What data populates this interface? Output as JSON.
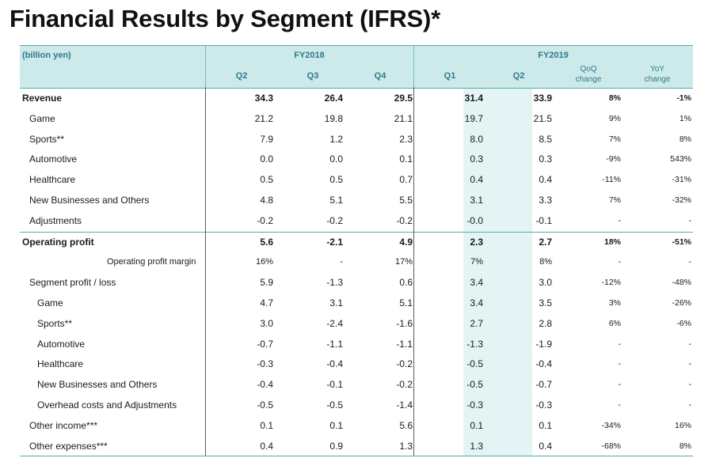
{
  "title": "Financial Results by Segment (IFRS)*",
  "header": {
    "unit": "(billion yen)",
    "fy2018": "FY2018",
    "fy2019": "FY2019",
    "quarters": [
      "Q2",
      "Q3",
      "Q4",
      "Q1",
      "Q2"
    ],
    "qoq": [
      "QoQ",
      "change"
    ],
    "yoy": [
      "YoY",
      "change"
    ]
  },
  "rows": [
    {
      "label": "Revenue",
      "indent": 0,
      "bold": true,
      "topline": false,
      "values": [
        "34.3",
        "26.4",
        "29.5",
        "31.4",
        "33.9"
      ],
      "qoq": "8%",
      "yoy": "-1%"
    },
    {
      "label": "Game",
      "indent": 1,
      "bold": false,
      "topline": false,
      "values": [
        "21.2",
        "19.8",
        "21.1",
        "19.7",
        "21.5"
      ],
      "qoq": "9%",
      "yoy": "1%"
    },
    {
      "label": "Sports**",
      "indent": 1,
      "bold": false,
      "topline": false,
      "values": [
        "7.9",
        "1.2",
        "2.3",
        "8.0",
        "8.5"
      ],
      "qoq": "7%",
      "yoy": "8%"
    },
    {
      "label": "Automotive",
      "indent": 1,
      "bold": false,
      "topline": false,
      "values": [
        "0.0",
        "0.0",
        "0.1",
        "0.3",
        "0.3"
      ],
      "qoq": "-9%",
      "yoy": "543%"
    },
    {
      "label": "Healthcare",
      "indent": 1,
      "bold": false,
      "topline": false,
      "values": [
        "0.5",
        "0.5",
        "0.7",
        "0.4",
        "0.4"
      ],
      "qoq": "-11%",
      "yoy": "-31%"
    },
    {
      "label": "New Businesses and Others",
      "indent": 1,
      "bold": false,
      "topline": false,
      "values": [
        "4.8",
        "5.1",
        "5.5",
        "3.1",
        "3.3"
      ],
      "qoq": "7%",
      "yoy": "-32%"
    },
    {
      "label": "Adjustments",
      "indent": 1,
      "bold": false,
      "topline": false,
      "values": [
        "-0.2",
        "-0.2",
        "-0.2",
        "-0.0",
        "-0.1"
      ],
      "qoq": "-",
      "yoy": "-"
    },
    {
      "label": "Operating profit",
      "indent": 0,
      "bold": true,
      "topline": true,
      "values": [
        "5.6",
        "-2.1",
        "4.9",
        "2.3",
        "2.7"
      ],
      "qoq": "18%",
      "yoy": "-51%"
    },
    {
      "label": "Operating profit margin",
      "indent": 3,
      "bold": false,
      "topline": false,
      "small": true,
      "values": [
        "16%",
        "-",
        "17%",
        "7%",
        "8%"
      ],
      "qoq": "-",
      "yoy": "-"
    },
    {
      "label": "Segment profit / loss",
      "indent": 1,
      "bold": false,
      "topline": false,
      "values": [
        "5.9",
        "-1.3",
        "0.6",
        "3.4",
        "3.0"
      ],
      "qoq": "-12%",
      "yoy": "-48%"
    },
    {
      "label": "Game",
      "indent": 2,
      "bold": false,
      "topline": false,
      "values": [
        "4.7",
        "3.1",
        "5.1",
        "3.4",
        "3.5"
      ],
      "qoq": "3%",
      "yoy": "-26%"
    },
    {
      "label": "Sports**",
      "indent": 2,
      "bold": false,
      "topline": false,
      "values": [
        "3.0",
        "-2.4",
        "-1.6",
        "2.7",
        "2.8"
      ],
      "qoq": "6%",
      "yoy": "-6%"
    },
    {
      "label": "Automotive",
      "indent": 2,
      "bold": false,
      "topline": false,
      "values": [
        "-0.7",
        "-1.1",
        "-1.1",
        "-1.3",
        "-1.9"
      ],
      "qoq": "-",
      "yoy": "-"
    },
    {
      "label": "Healthcare",
      "indent": 2,
      "bold": false,
      "topline": false,
      "values": [
        "-0.3",
        "-0.4",
        "-0.2",
        "-0.5",
        "-0.4"
      ],
      "qoq": "-",
      "yoy": "-"
    },
    {
      "label": "New Businesses and Others",
      "indent": 2,
      "bold": false,
      "topline": false,
      "values": [
        "-0.4",
        "-0.1",
        "-0.2",
        "-0.5",
        "-0.7"
      ],
      "qoq": "-",
      "yoy": "-"
    },
    {
      "label": "Overhead costs and Adjustments",
      "indent": 2,
      "bold": false,
      "topline": false,
      "values": [
        "-0.5",
        "-0.5",
        "-1.4",
        "-0.3",
        "-0.3"
      ],
      "qoq": "-",
      "yoy": "-"
    },
    {
      "label": "Other income***",
      "indent": 1,
      "bold": false,
      "topline": false,
      "values": [
        "0.1",
        "0.1",
        "5.6",
        "0.1",
        "0.1"
      ],
      "qoq": "-34%",
      "yoy": "16%"
    },
    {
      "label": "Other expenses***",
      "indent": 1,
      "bold": false,
      "topline": false,
      "values": [
        "0.4",
        "0.9",
        "1.3",
        "1.3",
        "0.4"
      ],
      "qoq": "-68%",
      "yoy": "8%"
    }
  ]
}
